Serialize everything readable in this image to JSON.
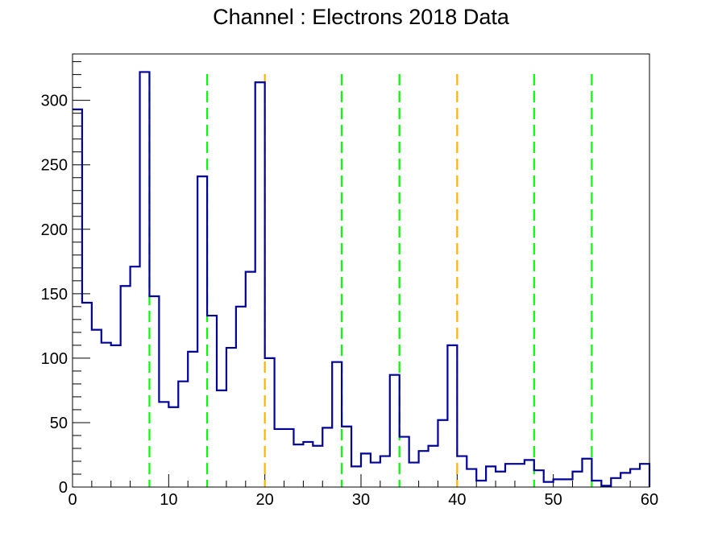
{
  "chart_data": {
    "type": "histogram",
    "title": "Channel : Electrons 2018 Data",
    "xlabel": "",
    "ylabel": "",
    "xlim": [
      0,
      60
    ],
    "ylim": [
      0,
      336
    ],
    "grid": false,
    "bin_width": 1,
    "x_ticks": [
      0,
      10,
      20,
      30,
      40,
      50,
      60
    ],
    "y_ticks": [
      0,
      50,
      100,
      150,
      200,
      250,
      300
    ],
    "values": [
      293,
      143,
      122,
      112,
      110,
      156,
      171,
      322,
      148,
      66,
      62,
      82,
      105,
      241,
      133,
      75,
      108,
      140,
      167,
      314,
      100,
      45,
      45,
      33,
      35,
      32,
      46,
      97,
      47,
      16,
      26,
      19,
      24,
      87,
      39,
      19,
      28,
      32,
      52,
      110,
      24,
      14,
      5,
      16,
      12,
      18,
      18,
      21,
      13,
      4,
      6,
      6,
      12,
      22,
      5,
      1,
      7,
      11,
      14,
      18
    ],
    "histogram_color": "#000099",
    "reference_lines": [
      {
        "x": 8,
        "color": "#00ff00"
      },
      {
        "x": 14,
        "color": "#00ff00"
      },
      {
        "x": 20,
        "color": "#ffb300"
      },
      {
        "x": 28,
        "color": "#00ff00"
      },
      {
        "x": 34,
        "color": "#00ff00"
      },
      {
        "x": 40,
        "color": "#ffb300"
      },
      {
        "x": 48,
        "color": "#00ff00"
      },
      {
        "x": 54,
        "color": "#00ff00"
      }
    ]
  }
}
